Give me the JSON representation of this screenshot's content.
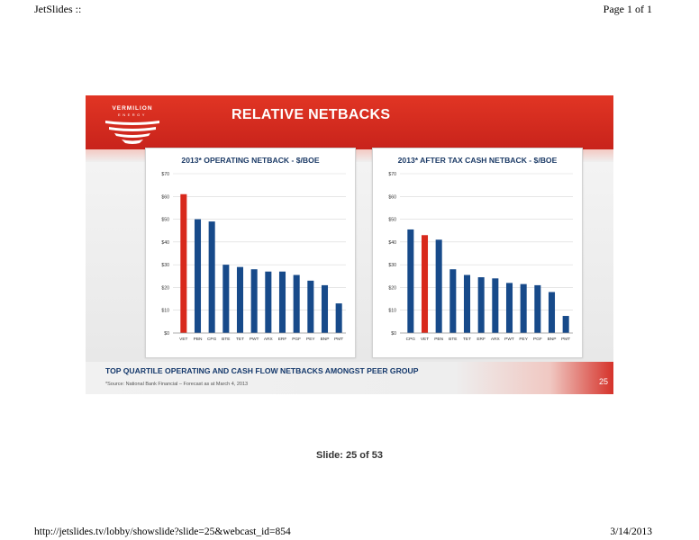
{
  "page": {
    "header_left": "JetSlides ::",
    "header_right": "Page 1 of 1",
    "slide_label": "Slide: 25 of 53",
    "footer_left": "http://jetslides.tv/lobby/showslide?slide=25&webcast_id=854",
    "footer_right": "3/14/2013"
  },
  "slide": {
    "logo_text_line1": "VERMILION",
    "logo_text_line2": "ENERGY",
    "title": "RELATIVE NETBACKS",
    "tagline": "TOP QUARTILE OPERATING AND CASH FLOW NETBACKS AMONGST PEER GROUP",
    "source": "*Source: National Bank Financial – Forecast as at March 4, 2013",
    "number": "25"
  },
  "colors": {
    "highlight": "#d8291c",
    "bar": "#174a8a",
    "banner": "#d52c1f"
  },
  "chart_data": [
    {
      "type": "bar",
      "title": "2013* OPERATING NETBACK - $/BOE",
      "ylim": [
        0,
        70
      ],
      "yticks": [
        "$0",
        "$10",
        "$20",
        "$30",
        "$40",
        "$50",
        "$60",
        "$70"
      ],
      "categories": [
        "VET",
        "PBN",
        "CPG",
        "BTE",
        "TET",
        "PWT",
        "ARX",
        "ERF",
        "PGF",
        "PEY",
        "BNP",
        "PMT"
      ],
      "values": [
        61,
        50,
        49,
        30,
        29,
        28,
        27,
        27,
        25.5,
        23,
        21,
        13
      ],
      "highlight": "VET",
      "grid": true
    },
    {
      "type": "bar",
      "title": "2013* AFTER TAX CASH NETBACK - $/BOE",
      "ylim": [
        0,
        70
      ],
      "yticks": [
        "$0",
        "$10",
        "$20",
        "$30",
        "$40",
        "$50",
        "$60",
        "$70"
      ],
      "categories": [
        "CPG",
        "VET",
        "PBN",
        "BTE",
        "TET",
        "ERF",
        "ARX",
        "PWT",
        "PEY",
        "PGF",
        "BNP",
        "PMT"
      ],
      "values": [
        45.5,
        43,
        41,
        28,
        25.5,
        24.5,
        24,
        22,
        21.5,
        21,
        18,
        7.5
      ],
      "highlight": "VET",
      "grid": true
    }
  ]
}
